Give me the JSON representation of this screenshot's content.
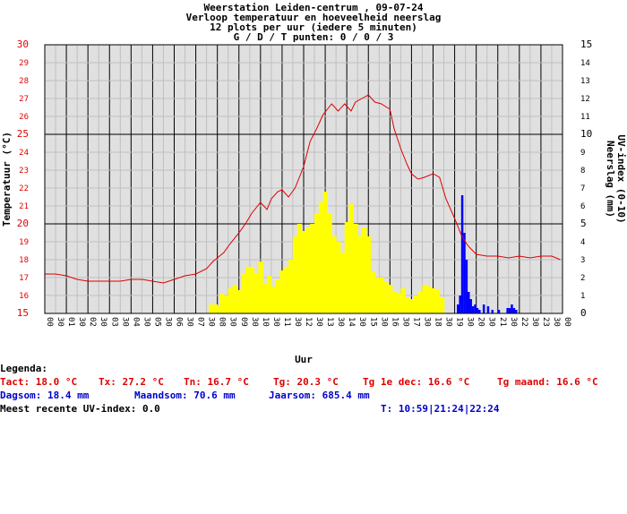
{
  "chart_data": {
    "type": "line",
    "title_lines": [
      "Weerstation Leiden-centrum , 09-07-24",
      "Verloop temperatuur en hoeveelheid neerslag",
      "12 plots per uur (iedere 5 minuten)",
      "G / D / T punten: 0 / 0 / 3"
    ],
    "xlabel": "Uur",
    "ylabel_left": "Temperatuur (°C)",
    "ylabel_right": "Neerslag (mm)",
    "ylabel_right2": "UV-index (0-10)",
    "x_tick_labels": [
      "00",
      "01",
      "02",
      "03",
      "04",
      "05",
      "06",
      "07",
      "08",
      "09",
      "10",
      "11",
      "12",
      "13",
      "14",
      "15",
      "16",
      "17",
      "18",
      "19",
      "20",
      "21",
      "22",
      "23",
      "00"
    ],
    "x_tick_sub": "30",
    "ylim_left": [
      15,
      30
    ],
    "ylim_right": [
      0,
      15
    ],
    "left_ticks": [
      "15",
      "16",
      "17",
      "18",
      "19",
      "20",
      "21",
      "22",
      "23",
      "24",
      "25",
      "26",
      "27",
      "28",
      "29",
      "30"
    ],
    "right_ticks": [
      "0",
      "1",
      "2",
      "3",
      "4",
      "5",
      "6",
      "7",
      "8",
      "9",
      "10",
      "11",
      "12",
      "13",
      "14",
      "15"
    ],
    "grid": true,
    "colors": {
      "temperature": "#e00000",
      "uv": "#ffff00",
      "rain": "#0000ff",
      "grid": "#c0c0c0",
      "major_grid": "#000000",
      "background": "#e0e0e0"
    },
    "series": [
      {
        "name": "Temperatuur",
        "axis": "left",
        "x": [
          0.0,
          0.5,
          1.0,
          1.5,
          2.0,
          2.5,
          3.0,
          3.5,
          4.0,
          4.5,
          5.0,
          5.5,
          6.0,
          6.5,
          7.0,
          7.5,
          7.8,
          8.0,
          8.3,
          8.6,
          9.0,
          9.3,
          9.6,
          10.0,
          10.3,
          10.5,
          10.8,
          11.0,
          11.3,
          11.6,
          12.0,
          12.3,
          12.6,
          12.9,
          13.1,
          13.3,
          13.6,
          13.9,
          14.2,
          14.4,
          14.7,
          15.0,
          15.3,
          15.6,
          16.0,
          16.2,
          16.5,
          16.8,
          17.0,
          17.3,
          17.6,
          18.0,
          18.3,
          18.6,
          19.0,
          19.3,
          19.6,
          20.0,
          20.5,
          21.0,
          21.5,
          22.0,
          22.5,
          23.0,
          23.5,
          23.9
        ],
        "y": [
          17.2,
          17.2,
          17.1,
          16.9,
          16.8,
          16.8,
          16.8,
          16.8,
          16.9,
          16.9,
          16.8,
          16.7,
          16.9,
          17.1,
          17.2,
          17.5,
          17.9,
          18.1,
          18.4,
          18.9,
          19.5,
          20.0,
          20.6,
          21.2,
          20.8,
          21.4,
          21.8,
          21.9,
          21.5,
          22.0,
          23.2,
          24.6,
          25.3,
          26.1,
          26.4,
          26.7,
          26.3,
          26.7,
          26.3,
          26.8,
          27.0,
          27.2,
          26.8,
          26.7,
          26.4,
          25.3,
          24.2,
          23.3,
          22.8,
          22.5,
          22.6,
          22.8,
          22.6,
          21.4,
          20.3,
          19.4,
          18.8,
          18.3,
          18.2,
          18.2,
          18.1,
          18.2,
          18.1,
          18.2,
          18.2,
          18.0
        ]
      },
      {
        "name": "UV-index",
        "axis": "right",
        "x": [
          7.6,
          7.8,
          8.0,
          8.1,
          8.3,
          8.5,
          8.7,
          8.9,
          9.1,
          9.3,
          9.5,
          9.7,
          9.9,
          10.1,
          10.3,
          10.5,
          10.7,
          10.9,
          11.1,
          11.3,
          11.5,
          11.7,
          11.9,
          12.1,
          12.3,
          12.5,
          12.7,
          12.9,
          13.1,
          13.3,
          13.5,
          13.7,
          13.9,
          14.1,
          14.3,
          14.5,
          14.7,
          14.9,
          15.1,
          15.3,
          15.5,
          15.7,
          15.9,
          16.1,
          16.3,
          16.5,
          16.7,
          16.9,
          17.1,
          17.3,
          17.5,
          17.7,
          17.9,
          18.1,
          18.3
        ],
        "y": [
          0.5,
          0.5,
          0.4,
          1.1,
          1.0,
          1.4,
          1.6,
          1.3,
          2.2,
          2.6,
          2.6,
          2.2,
          2.9,
          1.7,
          2.1,
          1.5,
          1.9,
          2.4,
          2.6,
          3.0,
          4.3,
          5.0,
          4.6,
          4.8,
          5.0,
          5.6,
          6.2,
          6.8,
          5.6,
          4.3,
          4.0,
          3.4,
          5.1,
          6.1,
          5.0,
          4.3,
          4.8,
          4.3,
          2.3,
          2.0,
          2.0,
          1.8,
          1.6,
          1.2,
          1.1,
          1.4,
          0.9,
          0.8,
          1.0,
          1.2,
          1.6,
          1.5,
          1.4,
          1.3,
          0.9
        ]
      },
      {
        "name": "Neerslag",
        "axis": "right",
        "x": [
          19.1,
          19.2,
          19.3,
          19.4,
          19.5,
          19.6,
          19.7,
          19.8,
          19.9,
          20.0,
          20.1,
          20.3,
          20.5,
          20.7,
          21.0,
          21.4,
          21.5,
          21.6,
          21.7,
          21.8
        ],
        "y": [
          0.5,
          1.0,
          6.6,
          4.5,
          3.0,
          1.2,
          0.8,
          0.4,
          0.5,
          0.3,
          0.2,
          0.5,
          0.4,
          0.2,
          0.2,
          0.3,
          0.3,
          0.5,
          0.3,
          0.2
        ]
      }
    ]
  },
  "legend": {
    "heading": "Legenda:",
    "tact": "Tact: 18.0 °C",
    "tx": "Tx: 27.2 °C",
    "tn": "Tn: 16.7 °C",
    "tg": "Tg: 20.3 °C",
    "tg_dec": "Tg 1e dec: 16.6 °C",
    "tg_maand": "Tg maand: 16.6 °C",
    "dagsom": "Dagsom: 18.4 mm",
    "maandsom": "Maandsom: 70.6 mm",
    "jaarsom": "Jaarsom: 685.4 mm",
    "uv_recent": "Meest recente UV-index: 0.0",
    "times": "T: 10:59|21:24|22:24"
  }
}
